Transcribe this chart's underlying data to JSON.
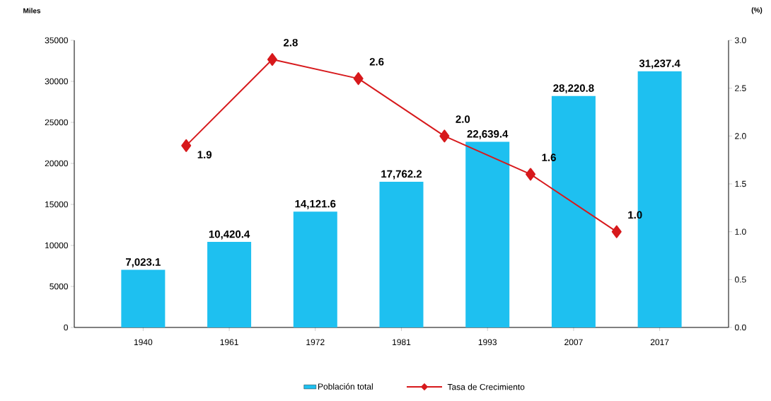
{
  "chart_data": {
    "type": "bar",
    "categories": [
      "1940",
      null,
      "1961",
      null,
      "1972",
      null,
      "1981",
      null,
      "1993",
      null,
      "2007",
      null,
      "2017"
    ],
    "ylabel": "Miles",
    "y2label": "(%)",
    "ylim": [
      0,
      35000
    ],
    "yticks": [
      0,
      5000,
      10000,
      15000,
      20000,
      25000,
      30000,
      35000
    ],
    "y2lim": [
      0,
      3.0
    ],
    "y2ticks": [
      {
        "value": 0,
        "label": "0.0"
      },
      {
        "value": 0.5,
        "label": "0.5"
      },
      {
        "value": 1,
        "label": "1.0"
      },
      {
        "value": 1.5,
        "label": "1.5"
      },
      {
        "value": 2,
        "label": "2.0"
      },
      {
        "value": 2.5,
        "label": "2.5"
      },
      {
        "value": 3,
        "label": "3.0"
      }
    ],
    "legend": "bottom",
    "series": [
      {
        "name": "Población total",
        "color": "#1ec0f0",
        "values": [
          7023.1,
          null,
          10420.4,
          null,
          14121.6,
          null,
          17762.2,
          null,
          22639.4,
          null,
          28220.8,
          null,
          31237.4
        ],
        "value_labels": [
          "7,023.1",
          null,
          "10,420.4",
          null,
          "14,121.6",
          null,
          "17,762.2",
          null,
          "22,639.4",
          null,
          "28,220.8",
          null,
          "31,237.4"
        ]
      },
      {
        "name": "Tasa de Crecimiento",
        "type": "line",
        "axis": "y2",
        "color": "#d7191c",
        "values": [
          null,
          1.9,
          null,
          2.8,
          null,
          2.6,
          null,
          2.0,
          null,
          1.6,
          null,
          1.0,
          null
        ],
        "value_labels": [
          null,
          "1.9",
          null,
          "2.8",
          null,
          "2.6",
          null,
          "2.0",
          null,
          "1.6",
          null,
          "1.0",
          null
        ],
        "marker": "diamond",
        "line_style": "solid"
      }
    ]
  }
}
